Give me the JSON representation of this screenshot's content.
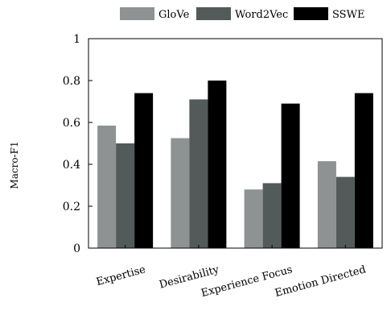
{
  "chart_data": {
    "type": "bar",
    "categories": [
      "Expertise",
      "Desirability",
      "Experience Focus",
      "Emotion Directed"
    ],
    "series": [
      {
        "name": "GloVe",
        "color": "#8f9293",
        "values": [
          0.585,
          0.525,
          0.28,
          0.415
        ]
      },
      {
        "name": "Word2Vec",
        "color": "#525a5a",
        "values": [
          0.5,
          0.71,
          0.31,
          0.34
        ]
      },
      {
        "name": "SSWE",
        "color": "#000000",
        "values": [
          0.74,
          0.8,
          0.69,
          0.74
        ]
      }
    ],
    "ylabel": "Macro-F1",
    "ylim": [
      0,
      1
    ],
    "yticks": [
      "0",
      "0.2",
      "0.4",
      "0.6",
      "0.8",
      "1"
    ],
    "legend_position": "top",
    "grid": false
  }
}
